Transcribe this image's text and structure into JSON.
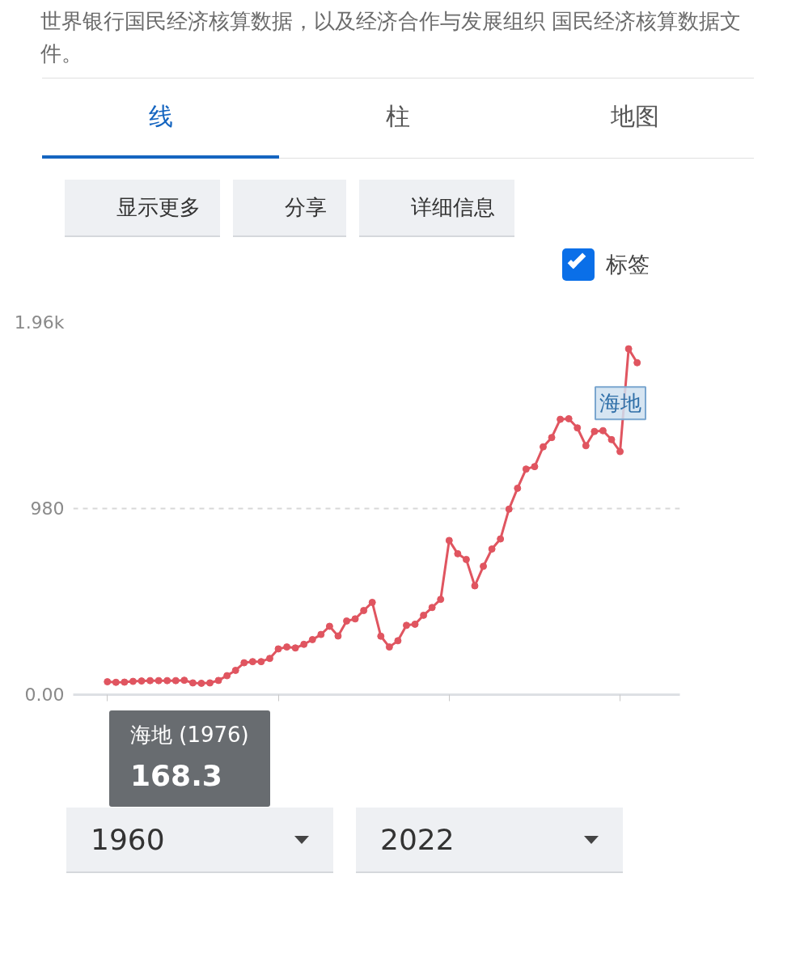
{
  "chart_data": {
    "type": "line",
    "categories": [
      null,
      null,
      null,
      null,
      null,
      null,
      null,
      null,
      null,
      null,
      null,
      null,
      null,
      null,
      null,
      null,
      null,
      null,
      null,
      null,
      null,
      null,
      null,
      null,
      null,
      null,
      null,
      null,
      null,
      null,
      null,
      null,
      null,
      null,
      null,
      null,
      null,
      null,
      null,
      null,
      null,
      null,
      null,
      null,
      null,
      null,
      null,
      null,
      null,
      null,
      null,
      null,
      null,
      null,
      null,
      null,
      null,
      null,
      null,
      null,
      null,
      null,
      null
    ],
    "series": [
      {
        "name": "海地",
        "color": "#e05560",
        "values": [
          68,
          65,
          66,
          70,
          72,
          74,
          74,
          74,
          74,
          76,
          62,
          60,
          62,
          75,
          100,
          128,
          168,
          174,
          174,
          191,
          241,
          251,
          246,
          265,
          290,
          317,
          360,
          309,
          388,
          399,
          443,
          486,
          308,
          251,
          284,
          365,
          371,
          418,
          459,
          502,
          812,
          742,
          712,
          573,
          676,
          767,
          820,
          977,
          1087,
          1188,
          1201,
          1305,
          1354,
          1450,
          1453,
          1405,
          1311,
          1386,
          1390,
          1343,
          1280,
          1821,
          1748
        ]
      }
    ],
    "ylim": [
      0,
      1960
    ],
    "yticks": [
      {
        "value": 0,
        "label": "0.00"
      },
      980,
      {
        "value": 1960,
        "label": "1.96k"
      }
    ],
    "tick_labels": "y",
    "grid": "y",
    "marker": "circle",
    "line_style": "solid",
    "annotations": [
      "世界银行国民经济核算数据，以及经济合作与发展组织 国民经济核算数据文件。",
      "线",
      "柱",
      "地图",
      "显示更多",
      "分享",
      "详细信息",
      "标签",
      "海地 (1976)",
      "168.3",
      "1960",
      "2022"
    ]
  }
}
